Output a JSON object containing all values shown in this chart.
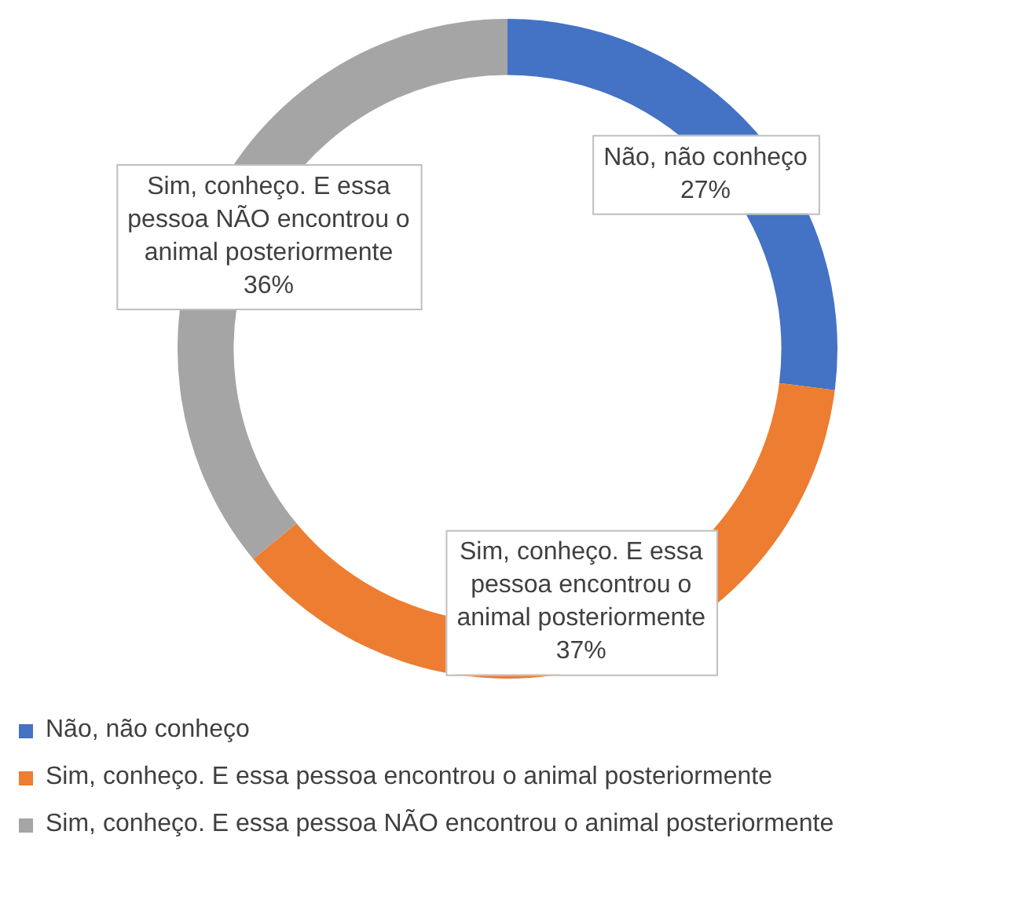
{
  "chart_data": {
    "type": "donut",
    "categories": [
      "Não, não conheço",
      "Sim, conheço. E essa pessoa encontrou o animal posteriormente",
      "Sim, conheço. E essa pessoa NÃO encontrou o animal posteriormente"
    ],
    "values": [
      27,
      37,
      36
    ],
    "colors": [
      "#4472c4",
      "#ed7d31",
      "#a5a5a5"
    ],
    "value_labels": [
      "27%",
      "37%",
      "36%"
    ],
    "legend": "bottom"
  }
}
